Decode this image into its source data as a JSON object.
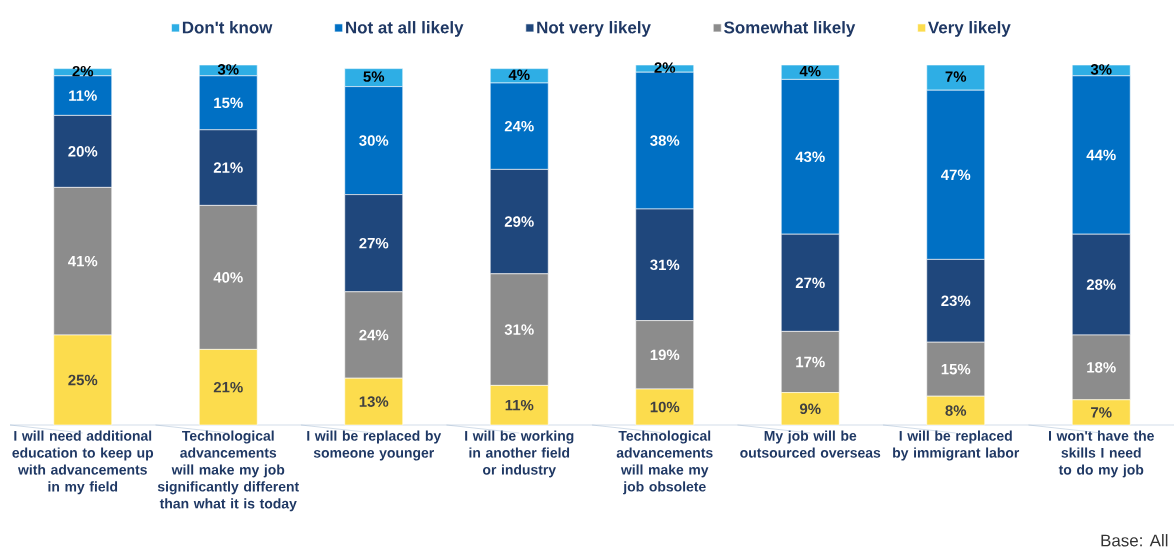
{
  "chart_data": {
    "type": "bar",
    "stacked": true,
    "legend": "top",
    "categories": [
      "I will need additional education to keep up with advancements in my field",
      "Technological advancements will make my job significantly different than what it is today",
      "I will be replaced by someone younger",
      "I will be working in another field or industry",
      "Technological advancements will make my job obsolete",
      "My job will be outsourced overseas",
      "I will be replaced by immigrant labor",
      "I won't have the skills I need to do my job"
    ],
    "ylim": [
      0,
      100
    ],
    "series": [
      {
        "name": "Very likely",
        "color": "#fcdc4d",
        "values": [
          25,
          21,
          13,
          11,
          10,
          9,
          8,
          7
        ],
        "value_labels": [
          "25%",
          "21%",
          "13%",
          "11%",
          "10%",
          "9%",
          "8%",
          "7%"
        ]
      },
      {
        "name": "Somewhat likely",
        "color": "#8c8c8c",
        "values": [
          41,
          40,
          24,
          31,
          19,
          17,
          15,
          18
        ],
        "value_labels": [
          "41%",
          "40%",
          "24%",
          "31%",
          "19%",
          "17%",
          "15%",
          "18%"
        ]
      },
      {
        "name": "Not very likely",
        "color": "#1f477c",
        "values": [
          20,
          21,
          27,
          29,
          31,
          27,
          23,
          28
        ],
        "value_labels": [
          "20%",
          "21%",
          "27%",
          "29%",
          "31%",
          "27%",
          "23%",
          "28%"
        ]
      },
      {
        "name": "Not at all likely",
        "color": "#0070c4",
        "values": [
          11,
          15,
          30,
          24,
          38,
          43,
          47,
          44
        ],
        "value_labels": [
          "11%",
          "15%",
          "30%",
          "24%",
          "38%",
          "43%",
          "47%",
          "44%"
        ]
      },
      {
        "name": "Don't know",
        "color": "#2eaee5",
        "values": [
          2,
          3,
          5,
          4,
          2,
          4,
          7,
          3
        ],
        "value_labels": [
          "2%",
          "3%",
          "5%",
          "4%",
          "2%",
          "4%",
          "7%",
          "3%"
        ]
      }
    ],
    "annotations": [
      "Base: All"
    ]
  }
}
